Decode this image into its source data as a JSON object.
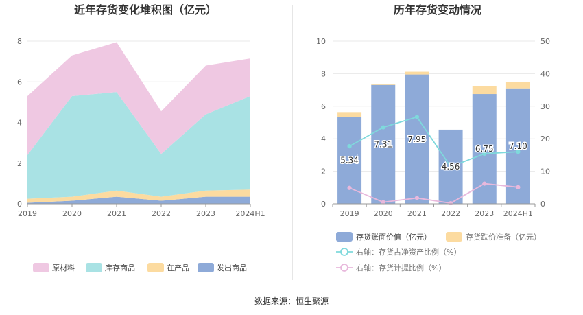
{
  "source_text": "数据来源：恒生聚源",
  "chart_data": [
    {
      "type": "area",
      "stacked": true,
      "title": "近年存货变化堆积图（亿元）",
      "categories": [
        "2019",
        "2020",
        "2021",
        "2022",
        "2023",
        "2024H1"
      ],
      "ylim": [
        0,
        8
      ],
      "yticks": [
        "0",
        "2",
        "4",
        "6",
        "8"
      ],
      "grid": true,
      "legend_position": "bottom",
      "series": [
        {
          "name": "发出商品",
          "values": [
            0.05,
            0.15,
            0.35,
            0.15,
            0.35,
            0.35
          ],
          "color": "#8eaad8"
        },
        {
          "name": "在产品",
          "values": [
            0.2,
            0.2,
            0.3,
            0.2,
            0.3,
            0.35
          ],
          "color": "#fcdba0"
        },
        {
          "name": "库存商品",
          "values": [
            2.15,
            4.95,
            4.85,
            2.1,
            3.75,
            4.6
          ],
          "color": "#a9e2e4"
        },
        {
          "name": "原材料",
          "values": [
            2.9,
            2.0,
            2.45,
            2.1,
            2.4,
            1.85
          ],
          "color": "#efc8e2"
        }
      ],
      "legend_order": [
        "原材料",
        "库存商品",
        "在产品",
        "发出商品"
      ]
    },
    {
      "type": "bar",
      "stacked": true,
      "title": "历年存货变动情况",
      "categories": [
        "2019",
        "2020",
        "2021",
        "2022",
        "2023",
        "2024H1"
      ],
      "ylim": [
        0,
        10
      ],
      "yticks": [
        "0",
        "2",
        "4",
        "6",
        "8",
        "10"
      ],
      "y2lim": [
        0,
        50
      ],
      "y2ticks": [
        "0",
        "10",
        "20",
        "30",
        "40",
        "50"
      ],
      "grid": true,
      "legend_position": "bottom",
      "series": [
        {
          "name": "存货账面价值（亿元）",
          "values": [
            5.34,
            7.31,
            7.95,
            4.56,
            6.75,
            7.1
          ],
          "labels": [
            "5.34",
            "7.31",
            "7.95",
            "4.56",
            "6.75",
            "7.10"
          ],
          "color": "#8eaad8",
          "kind": "bar"
        },
        {
          "name": "存货跌价准备（亿元）",
          "values": [
            0.3,
            0.07,
            0.17,
            0.0,
            0.47,
            0.4
          ],
          "color": "#fcdba0",
          "kind": "bar"
        },
        {
          "name": "右轴：存货占净资产比例（%）",
          "values": [
            17.7,
            23.5,
            26.7,
            11.4,
            15.4,
            16.0
          ],
          "color": "#7fd9dc",
          "kind": "line",
          "axis": "right"
        },
        {
          "name": "右轴：存货计提比例（%）",
          "values": [
            4.9,
            0.5,
            1.8,
            0.2,
            6.2,
            5.1
          ],
          "color": "#e8b8dc",
          "kind": "line",
          "axis": "right"
        }
      ]
    }
  ]
}
